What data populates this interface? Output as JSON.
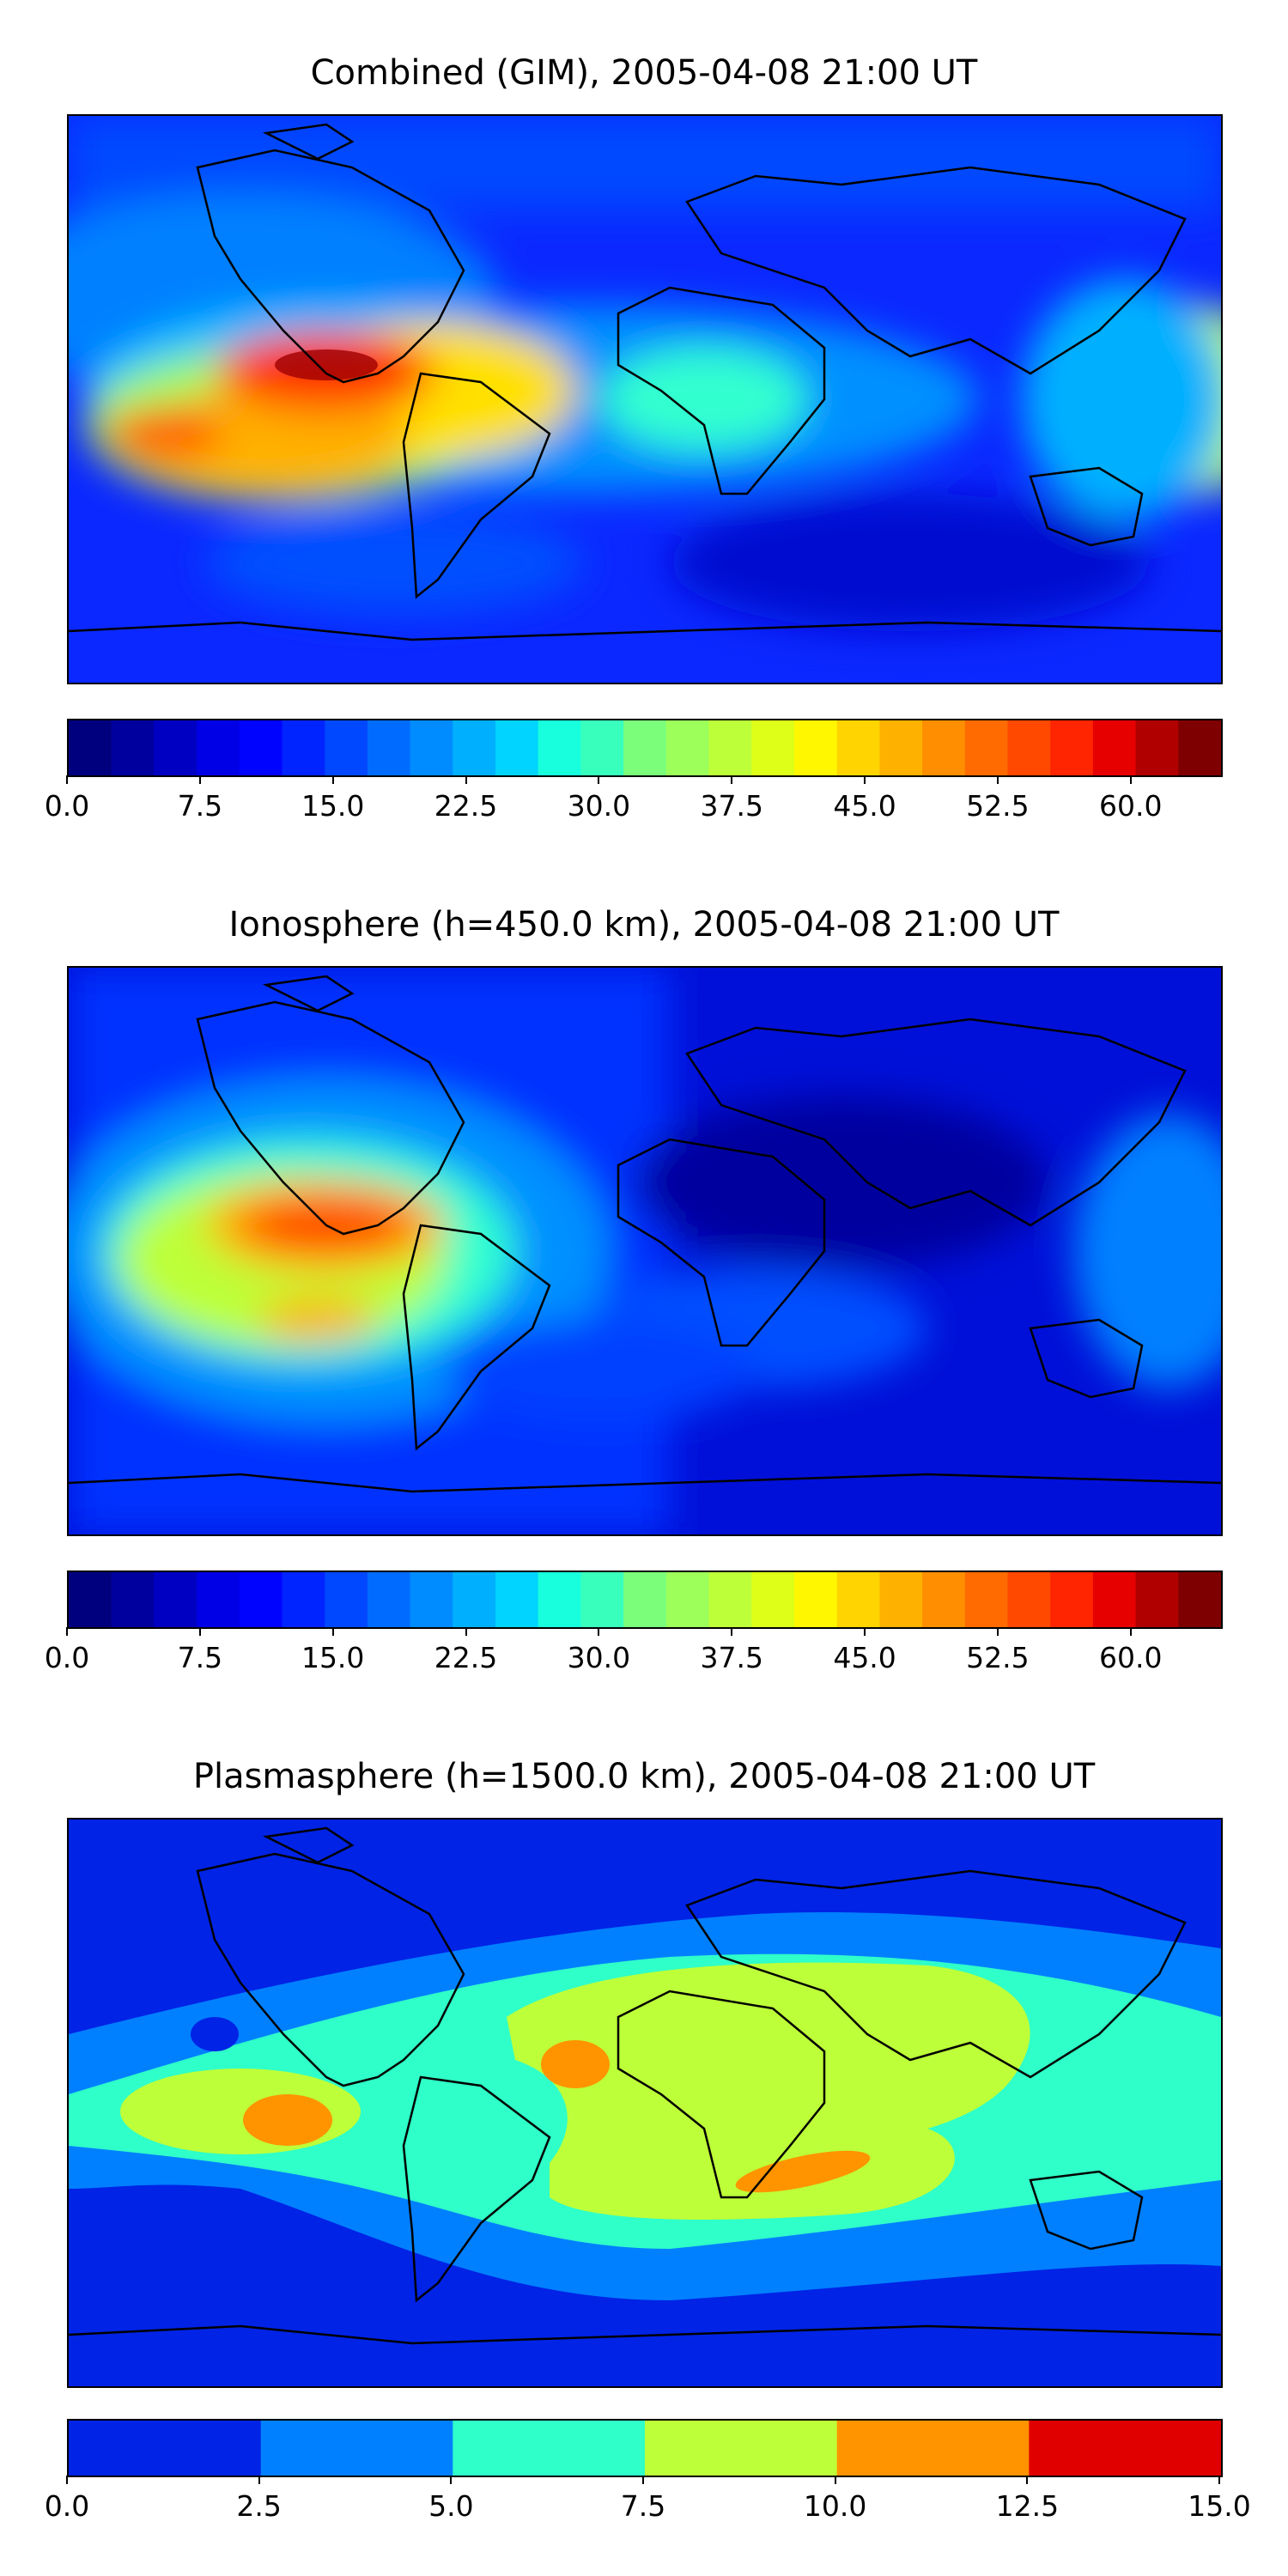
{
  "chart_data": [
    {
      "type": "heatmap",
      "title": "Combined (GIM), 2005-04-08 21:00 UT",
      "colormap": "jet",
      "levels": 26,
      "colorbar_range": [
        0.0,
        65.0
      ],
      "colorbar_ticks": [
        "0.0",
        "7.5",
        "15.0",
        "22.5",
        "30.0",
        "37.5",
        "45.0",
        "52.5",
        "60.0"
      ],
      "colorbar_tick_values": [
        0.0,
        7.5,
        15.0,
        22.5,
        30.0,
        37.5,
        45.0,
        52.5,
        60.0
      ],
      "max_value_region": "eastern tropical Pacific west of South America",
      "approx_max": 63
    },
    {
      "type": "heatmap",
      "title": "Ionosphere  (h=450.0 km), 2005-04-08 21:00 UT",
      "colormap": "jet",
      "levels": 26,
      "colorbar_range": [
        0.0,
        65.0
      ],
      "colorbar_ticks": [
        "0.0",
        "7.5",
        "15.0",
        "22.5",
        "30.0",
        "37.5",
        "45.0",
        "52.5",
        "60.0"
      ],
      "colorbar_tick_values": [
        0.0,
        7.5,
        15.0,
        22.5,
        30.0,
        37.5,
        45.0,
        52.5,
        60.0
      ],
      "max_value_region": "eastern tropical Pacific west of South America",
      "approx_max": 55
    },
    {
      "type": "heatmap",
      "title": "Plasmasphere (h=1500.0 km), 2005-04-08 21:00 UT",
      "colormap": "jet",
      "levels": 6,
      "colorbar_range": [
        0.0,
        15.0
      ],
      "colorbar_ticks": [
        "0.0",
        "2.5",
        "5.0",
        "7.5",
        "10.0",
        "12.5",
        "15.0"
      ],
      "colorbar_tick_values": [
        0.0,
        2.5,
        5.0,
        7.5,
        10.0,
        12.5,
        15.0
      ],
      "max_value_region": "West Africa / southern Africa / central Pacific",
      "approx_max": 11
    }
  ],
  "colors": {
    "jet26": [
      "#00007f",
      "#00009f",
      "#0000c3",
      "#0000e6",
      "#0004ff",
      "#0024ff",
      "#0048ff",
      "#006cff",
      "#008cff",
      "#00b0ff",
      "#00d4ff",
      "#18ffdd",
      "#39ffbd",
      "#5aff9c",
      "#7bff7b",
      "#9cff5a",
      "#bdff39",
      "#ddff18",
      "#fff700",
      "#ffd400",
      "#ffb100",
      "#ff8e00",
      "#ff6b00",
      "#ff4800",
      "#ff2500",
      "#e60000",
      "#b00000",
      "#7f0000"
    ],
    "plasma6": [
      "#0023e6",
      "#0080ff",
      "#2fffc8",
      "#bdff39",
      "#ff9400",
      "#e00000"
    ]
  }
}
